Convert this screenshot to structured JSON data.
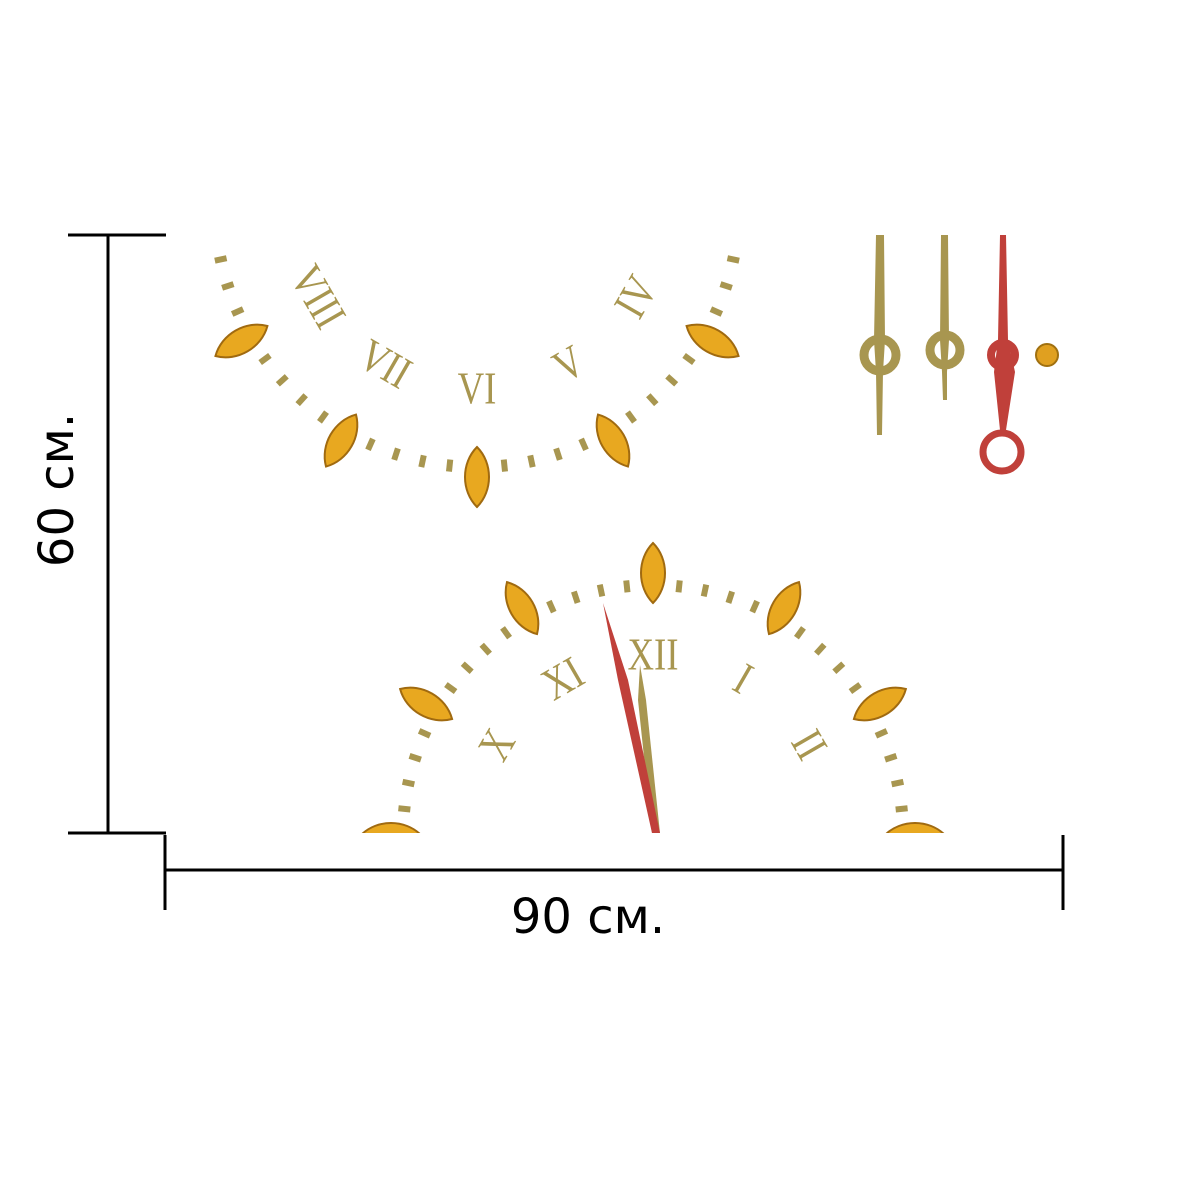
{
  "dimensions": {
    "height": "60 см.",
    "width": "90 см."
  },
  "top_clock": {
    "numerals": [
      "IV",
      "V",
      "VI",
      "VII",
      "VIII"
    ]
  },
  "bottom_clock": {
    "numerals": [
      "X",
      "XI",
      "XII",
      "I",
      "II"
    ]
  }
}
